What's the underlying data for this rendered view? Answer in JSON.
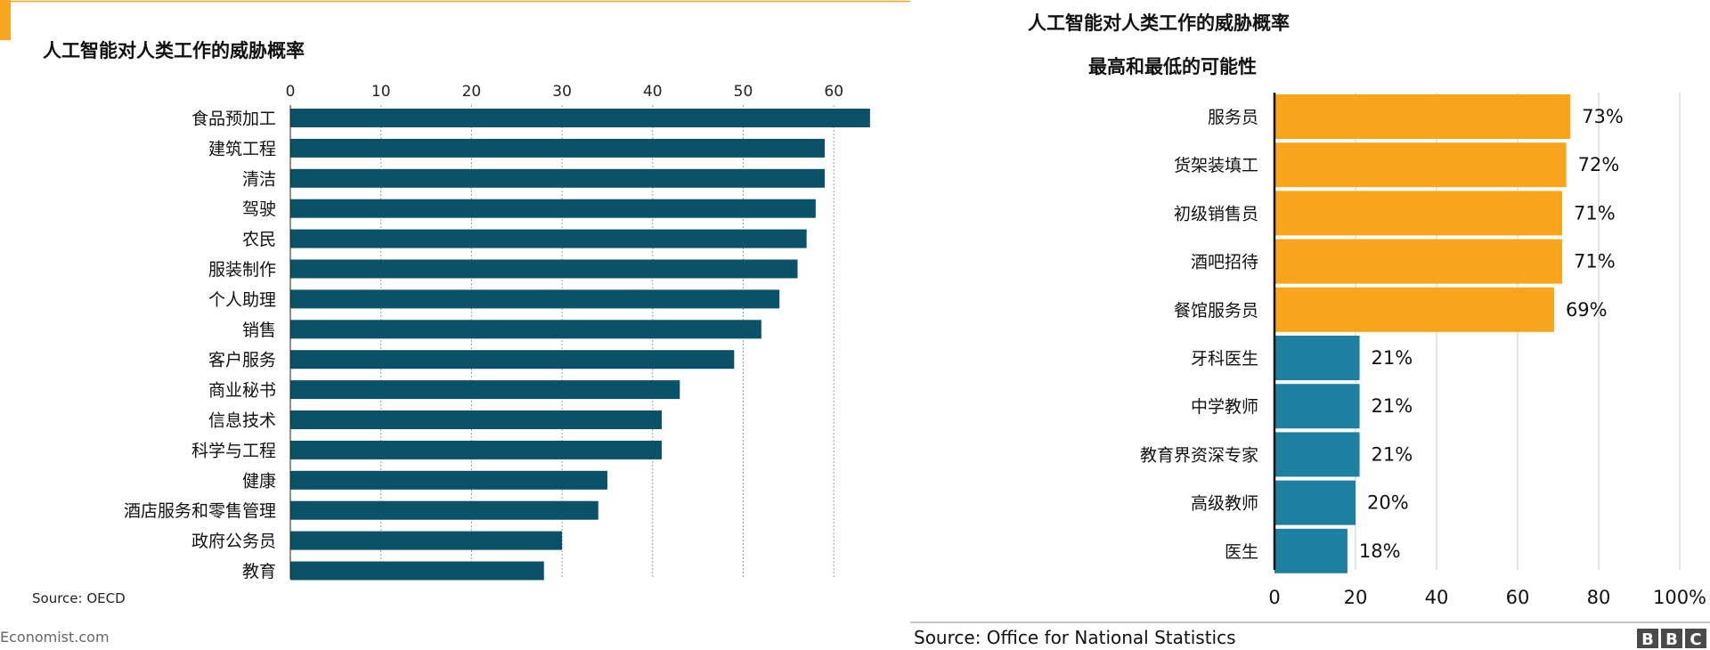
{
  "chart_data": [
    {
      "type": "bar",
      "orientation": "horizontal",
      "title": "人工智能对人类工作的威胁概率",
      "source": "Source: OECD",
      "footer": "Economist.com",
      "xlim": [
        0,
        64
      ],
      "xticks": [
        "0",
        "10",
        "20",
        "30",
        "40",
        "50",
        "60"
      ],
      "xtick_values": [
        0,
        10,
        20,
        30,
        40,
        50,
        60
      ],
      "grid": true,
      "categories": [
        "食品预加工",
        "建筑工程",
        "清洁",
        "驾驶",
        "农民",
        "服装制作",
        "个人助理",
        "销售",
        "客户服务",
        "商业秘书",
        "信息技术",
        "科学与工程",
        "健康",
        "酒店服务和零售管理",
        "政府公务员",
        "教育"
      ],
      "values": [
        64,
        59,
        59,
        58,
        57,
        56,
        54,
        52,
        49,
        43,
        41,
        41,
        35,
        34,
        30,
        28
      ],
      "colors": {
        "bar": "#0b5269",
        "accent": "#f6a623"
      }
    },
    {
      "type": "bar",
      "orientation": "horizontal",
      "title": "人工智能对人类工作的威胁概率",
      "subtitle": "最高和最低的可能性",
      "source": "Source: Office for National Statistics",
      "logo": "BBC",
      "xlim": [
        0,
        100
      ],
      "xticks": [
        "0",
        "20",
        "40",
        "60",
        "80",
        "100%"
      ],
      "xtick_values": [
        0,
        20,
        40,
        60,
        80,
        100
      ],
      "grid": true,
      "categories": [
        "服务员",
        "货架装填工",
        "初级销售员",
        "酒吧招待",
        "餐馆服务员",
        "牙科医生",
        "中学教师",
        "教育界资深专家",
        "高级教师",
        "医生"
      ],
      "values": [
        73,
        72,
        71,
        71,
        69,
        21,
        21,
        21,
        20,
        18
      ],
      "labels": [
        "73%",
        "72%",
        "71%",
        "71%",
        "69%",
        "21%",
        "21%",
        "21%",
        "20%",
        "18%"
      ],
      "colors": {
        "high": "#f8a51c",
        "low": "#1e80a0"
      }
    }
  ]
}
